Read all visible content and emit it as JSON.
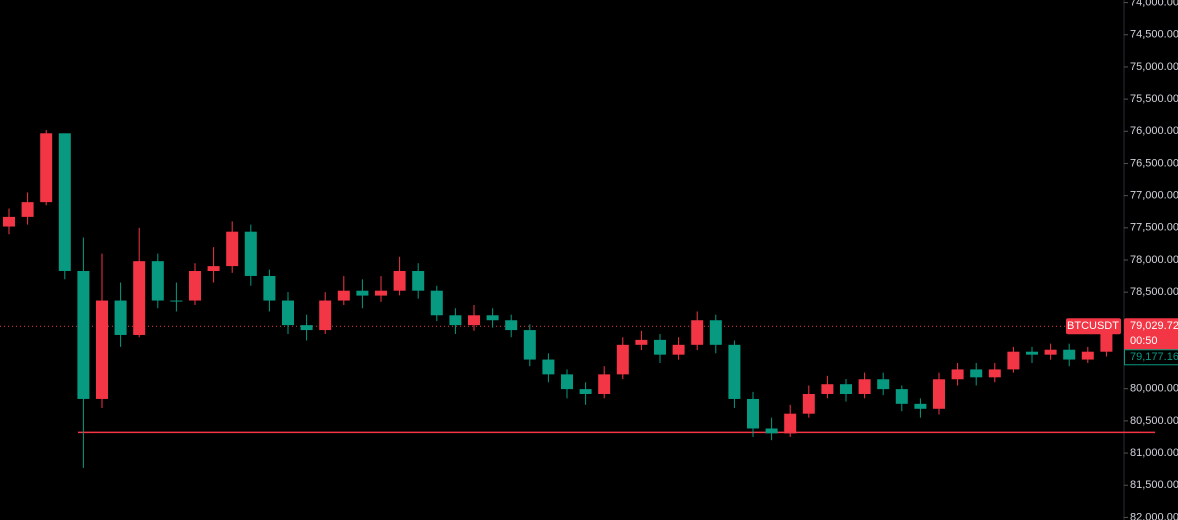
{
  "chart_data": {
    "type": "candlestick",
    "symbol": "BTCUSDT",
    "ylim": [
      73960,
      82040
    ],
    "y_inverted": true,
    "yticks": [
      {
        "value": 74000,
        "label": "74,000.00"
      },
      {
        "value": 74500,
        "label": "74,500.00"
      },
      {
        "value": 75000,
        "label": "75,000.00"
      },
      {
        "value": 75500,
        "label": "75,500.00"
      },
      {
        "value": 76000,
        "label": "76,000.00"
      },
      {
        "value": 76500,
        "label": "76,500.00"
      },
      {
        "value": 77000,
        "label": "77,000.00"
      },
      {
        "value": 77500,
        "label": "77,500.00"
      },
      {
        "value": 78000,
        "label": "78,000.00"
      },
      {
        "value": 78500,
        "label": "78,500.00"
      },
      {
        "value": 79000,
        "label": "79,000.00"
      },
      {
        "value": 79500,
        "label": "79,500.00"
      },
      {
        "value": 80000,
        "label": "80,000.00"
      },
      {
        "value": 80500,
        "label": "80,500.00"
      },
      {
        "value": 81000,
        "label": "81,000.00"
      },
      {
        "value": 81500,
        "label": "81,500.00"
      },
      {
        "value": 82000,
        "label": "82,000.00"
      }
    ],
    "up_color": "#089981",
    "down_color": "#f23645",
    "ohlc": [
      [
        77480,
        77600,
        77200,
        77330
      ],
      [
        77330,
        77450,
        76950,
        77101
      ],
      [
        77101,
        77150,
        75980,
        76031
      ],
      [
        76031,
        78300,
        76050,
        78171
      ],
      [
        78171,
        81230,
        77650,
        80159
      ],
      [
        80159,
        80300,
        77900,
        78630
      ],
      [
        78630,
        79350,
        78350,
        79165
      ],
      [
        79165,
        79200,
        77500,
        78018
      ],
      [
        78018,
        78750,
        77900,
        78630
      ],
      [
        78630,
        78800,
        78350,
        78630
      ],
      [
        78630,
        78700,
        78050,
        78171
      ],
      [
        78171,
        78350,
        77800,
        78095
      ],
      [
        78095,
        78200,
        77400,
        77560
      ],
      [
        77560,
        78400,
        77450,
        78248
      ],
      [
        78248,
        78800,
        78150,
        78630
      ],
      [
        78630,
        79150,
        78500,
        79012
      ],
      [
        79012,
        79250,
        78850,
        79089
      ],
      [
        79089,
        79150,
        78500,
        78630
      ],
      [
        78630,
        78700,
        78250,
        78477
      ],
      [
        78477,
        78750,
        78300,
        78553
      ],
      [
        78553,
        78650,
        78250,
        78477
      ],
      [
        78477,
        78550,
        77950,
        78171
      ],
      [
        78171,
        78600,
        78050,
        78477
      ],
      [
        78477,
        78950,
        78400,
        78859
      ],
      [
        78859,
        79150,
        78750,
        79012
      ],
      [
        79012,
        79100,
        78700,
        78859
      ],
      [
        78859,
        79050,
        78750,
        78936
      ],
      [
        78936,
        79200,
        78850,
        79089
      ],
      [
        79089,
        79650,
        79000,
        79547
      ],
      [
        79547,
        79900,
        79450,
        79777
      ],
      [
        79777,
        80150,
        79700,
        80006
      ],
      [
        80006,
        80250,
        79900,
        80082
      ],
      [
        80082,
        80150,
        79650,
        79777
      ],
      [
        79777,
        79850,
        79200,
        79318
      ],
      [
        79318,
        79400,
        79100,
        79241
      ],
      [
        79241,
        79600,
        79150,
        79471
      ],
      [
        79471,
        79550,
        79200,
        79318
      ],
      [
        79318,
        79400,
        78800,
        78936
      ],
      [
        78936,
        79450,
        78850,
        79318
      ],
      [
        79318,
        80300,
        79250,
        80159
      ],
      [
        80159,
        80750,
        80050,
        80618
      ],
      [
        80618,
        80800,
        80450,
        80694
      ],
      [
        80694,
        80750,
        80250,
        80388
      ],
      [
        80388,
        80450,
        79950,
        80082
      ],
      [
        80082,
        80150,
        79800,
        79930
      ],
      [
        79930,
        80200,
        79850,
        80082
      ],
      [
        80082,
        80150,
        79750,
        79853
      ],
      [
        79853,
        80100,
        79750,
        80006
      ],
      [
        80006,
        80350,
        79950,
        80235
      ],
      [
        80235,
        80450,
        80150,
        80312
      ],
      [
        80312,
        80400,
        79750,
        79853
      ],
      [
        79853,
        79950,
        79600,
        79700
      ],
      [
        79700,
        79950,
        79600,
        79823
      ],
      [
        79823,
        79900,
        79600,
        79700
      ],
      [
        79700,
        79750,
        79350,
        79425
      ],
      [
        79425,
        79600,
        79350,
        79471
      ],
      [
        79471,
        79550,
        79300,
        79394
      ],
      [
        79394,
        79650,
        79300,
        79547
      ],
      [
        79547,
        79600,
        79350,
        79425
      ],
      [
        79425,
        79500,
        78990,
        79030
      ]
    ],
    "last_price": {
      "value": 79029.72,
      "label": "79,029.72"
    },
    "countdown": "00:50",
    "other_price": {
      "value": 79177.16,
      "label": "79,177.16"
    },
    "price_line": {
      "value": 80679,
      "color": "#f23645"
    }
  }
}
